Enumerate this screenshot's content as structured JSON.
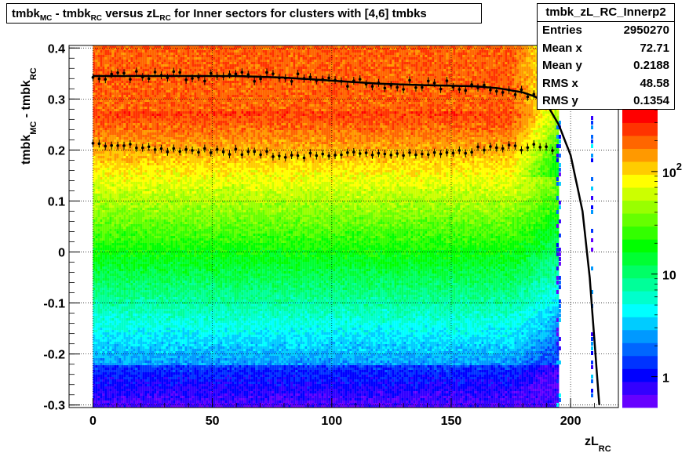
{
  "title": {
    "p1": "tmbk",
    "s1": "MC",
    "p2": " - tmbk",
    "s2": "RC",
    "p3": " versus zL",
    "s3": "RC",
    "p4": " for Inner sectors for clusters with [4,6] tmbks"
  },
  "stats": {
    "name": "tmbk_zL_RC_Innerp2",
    "rows": [
      {
        "label": "Entries",
        "value": "2950270"
      },
      {
        "label": "Mean x",
        "value": "72.71"
      },
      {
        "label": "Mean y",
        "value": "0.2188"
      },
      {
        "label": "RMS x",
        "value": "48.58"
      },
      {
        "label": "RMS y",
        "value": "0.1354"
      }
    ]
  },
  "xaxis": {
    "main": "zL",
    "sub": "RC"
  },
  "yaxis": {
    "p1": "tmbk",
    "s1": "MC",
    "p2": " - tmbk",
    "s2": "RC"
  },
  "colors": {
    "palette": [
      "#6600ff",
      "#3300ff",
      "#0000ff",
      "#0033ff",
      "#0066ff",
      "#0099ff",
      "#00ccff",
      "#00ffff",
      "#00ffcc",
      "#00ff99",
      "#00ff66",
      "#00ff33",
      "#00ff00",
      "#33ff00",
      "#66ff00",
      "#99ff00",
      "#ccff00",
      "#ffff00",
      "#ffcc00",
      "#ff9900",
      "#ff6600",
      "#ff3300",
      "#ff0000"
    ]
  },
  "chart_data": {
    "type": "heatmap",
    "xlim": [
      -10,
      220
    ],
    "ylim": [
      -0.305,
      0.405
    ],
    "xticks": [
      0,
      50,
      100,
      150,
      200
    ],
    "yticks": [
      -0.3,
      -0.2,
      -0.1,
      0,
      0.1,
      0.2,
      0.3,
      0.4
    ],
    "colorbar": {
      "scale": "log",
      "range": [
        0.5,
        400
      ],
      "ticks": [
        {
          "v": 1,
          "label": "1"
        },
        {
          "v": 10,
          "label": "10"
        },
        {
          "v": 100,
          "label": "10",
          "sup": "2"
        }
      ]
    },
    "grid": true,
    "fill_x_range": [
      0,
      195
    ],
    "upper_profile": {
      "x": [
        0,
        20,
        40,
        60,
        80,
        100,
        120,
        140,
        160,
        170,
        180,
        185,
        190,
        195,
        200,
        205,
        208,
        212
      ],
      "y": [
        0.345,
        0.345,
        0.345,
        0.345,
        0.342,
        0.336,
        0.33,
        0.327,
        0.325,
        0.321,
        0.313,
        0.305,
        0.29,
        0.25,
        0.19,
        0.08,
        -0.05,
        -0.3
      ]
    },
    "lower_profile": {
      "x": [
        0,
        20,
        40,
        60,
        80,
        100,
        120,
        140,
        160,
        170,
        180,
        190,
        193
      ],
      "y": [
        0.215,
        0.205,
        0.198,
        0.196,
        0.19,
        0.19,
        0.192,
        0.195,
        0.2,
        0.203,
        0.205,
        0.21,
        0.2
      ]
    }
  }
}
